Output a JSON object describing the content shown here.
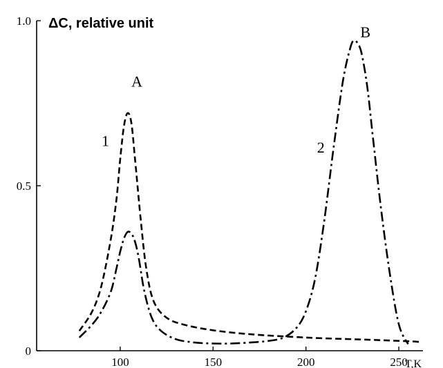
{
  "chart_data": {
    "type": "line",
    "title": "",
    "ylabel": "ΔC, relative unit",
    "xlabel": "T,K",
    "xlim": [
      55,
      263
    ],
    "ylim": [
      0,
      1.0
    ],
    "x_ticks": [
      100,
      150,
      200,
      250
    ],
    "x_tick_labels": [
      "100",
      "150",
      "200",
      "250"
    ],
    "y_ticks": [
      0,
      0.5,
      1.0
    ],
    "y_tick_labels": [
      "0",
      "0.5",
      "1.0"
    ],
    "grid": false,
    "series": [
      {
        "name": "1",
        "style": "dashed",
        "x": [
          78,
          85,
          90,
          95,
          98,
          100,
          102,
          104,
          106,
          108,
          111,
          114,
          118,
          125,
          135,
          150,
          170,
          200,
          230,
          250,
          258,
          265
        ],
        "y": [
          0.06,
          0.12,
          0.2,
          0.34,
          0.46,
          0.58,
          0.68,
          0.72,
          0.69,
          0.58,
          0.4,
          0.25,
          0.15,
          0.1,
          0.078,
          0.062,
          0.05,
          0.04,
          0.034,
          0.03,
          0.028,
          0.026
        ]
      },
      {
        "name": "2",
        "style": "dash-dot",
        "x": [
          78,
          85,
          90,
          95,
          98,
          100,
          102,
          104,
          106,
          108,
          110,
          113,
          117,
          122,
          130,
          140,
          150,
          160,
          170,
          180,
          188,
          195,
          200,
          205,
          210,
          215,
          220,
          224,
          226,
          228,
          230,
          233,
          236,
          240,
          245,
          250,
          255
        ],
        "y": [
          0.04,
          0.08,
          0.12,
          0.18,
          0.25,
          0.3,
          0.34,
          0.36,
          0.355,
          0.33,
          0.28,
          0.18,
          0.1,
          0.06,
          0.035,
          0.025,
          0.022,
          0.022,
          0.025,
          0.03,
          0.04,
          0.07,
          0.12,
          0.22,
          0.4,
          0.62,
          0.82,
          0.92,
          0.94,
          0.93,
          0.9,
          0.8,
          0.65,
          0.45,
          0.24,
          0.08,
          0.02
        ]
      }
    ],
    "annotations": [
      {
        "text": "A",
        "x": 109,
        "y": 0.8
      },
      {
        "text": "B",
        "x": 232,
        "y": 0.95
      },
      {
        "text": "1",
        "x": 92,
        "y": 0.62
      },
      {
        "text": "2",
        "x": 208,
        "y": 0.6
      }
    ]
  }
}
